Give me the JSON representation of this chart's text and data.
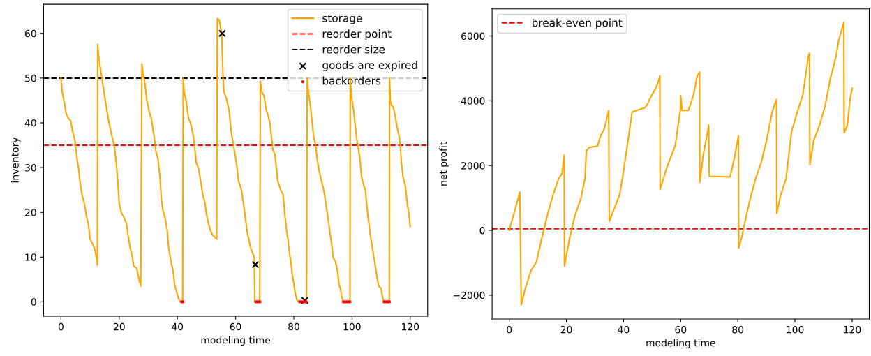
{
  "chart_data": [
    {
      "type": "line",
      "xlabel": "modeling time",
      "ylabel": "inventory",
      "xlim": [
        -6,
        126
      ],
      "ylim": [
        -3.2,
        66.5
      ],
      "xticks": [
        0,
        20,
        40,
        60,
        80,
        100,
        120
      ],
      "yticks": [
        0,
        10,
        20,
        30,
        40,
        50,
        60
      ],
      "grid": false,
      "legend": "top right",
      "series": [
        {
          "name": "storage",
          "color": "#ffa500",
          "marker": "none",
          "line_style": "solid",
          "x": [
            0,
            0.4,
            1,
            1.8,
            2.5,
            3.3,
            4,
            4.8,
            5.5,
            6,
            6.5,
            7.2,
            8,
            8.8,
            9.5,
            10,
            10.8,
            11.5,
            12.3,
            12.5,
            12.6,
            13,
            13.8,
            14.5,
            15,
            15.7,
            16.5,
            17.5,
            18.3,
            19,
            19.5,
            20,
            20.7,
            21.5,
            22.5,
            23,
            23.8,
            24.5,
            25,
            26,
            26.8,
            27.4,
            27.8,
            28.2,
            28.8,
            29.5,
            30.5,
            31,
            32,
            32.5,
            33.3,
            34,
            34.5,
            35,
            35.7,
            36.5,
            37,
            37.8,
            38.5,
            39,
            39.8,
            40.5,
            41.2,
            41.8,
            42,
            42.3,
            43,
            43.8,
            44.5,
            45.5,
            46,
            46.5,
            47.2,
            48,
            48.7,
            49.5,
            50,
            50.5,
            51.3,
            52,
            53.5,
            53.7,
            54.4,
            55.2,
            55.7,
            56,
            57,
            57.7,
            58.5,
            59,
            59.8,
            60.5,
            61,
            62,
            62.7,
            63.3,
            64,
            64.5,
            65.2,
            65.8,
            66.4,
            66.6,
            68.3,
            68.5,
            69,
            69.8,
            70.5,
            71,
            71.8,
            72.3,
            72.8,
            73.5,
            74,
            74.5,
            75.5,
            76.3,
            77,
            77.5,
            78,
            78.5,
            79,
            79.5,
            80,
            80.5,
            81,
            81.8,
            84.4,
            84.6,
            85,
            85.7,
            86.3,
            86.8,
            87.5,
            88,
            88.8,
            89.5,
            90.3,
            91,
            91.7,
            92.3,
            93,
            93.5,
            94.3,
            95,
            95.5,
            96,
            96.5,
            97,
            99.3,
            99.4,
            99.8,
            100.5,
            101,
            101.5,
            102,
            102.7,
            103.3,
            104,
            104.6,
            105,
            105.5,
            106.3,
            107,
            107.5,
            108,
            108.7,
            109.2,
            110,
            110.5,
            111,
            112.8,
            112.9,
            113.2,
            113.5,
            114.2,
            115,
            115.5,
            116.2,
            116.6,
            117,
            117.5,
            118.3,
            118.8,
            119.2,
            119.6,
            120
          ],
          "values": [
            50,
            47,
            45,
            42,
            41,
            40.5,
            38,
            36,
            32,
            30,
            27,
            24,
            22,
            19,
            17,
            14,
            13,
            12,
            9.5,
            8.2,
            57.5,
            54.5,
            51,
            48,
            46,
            43,
            40,
            37,
            35,
            31,
            27,
            22,
            20,
            19,
            17.5,
            15,
            12,
            10,
            8,
            7.5,
            5,
            3.5,
            53.2,
            51,
            49,
            45,
            42,
            41,
            37,
            34,
            32,
            28,
            23,
            20.5,
            19,
            16,
            12,
            9,
            7,
            4,
            2,
            0.5,
            0,
            0,
            50,
            47,
            45,
            41,
            40,
            37,
            34,
            31,
            30,
            27,
            24,
            22,
            19.5,
            18,
            16,
            15,
            14,
            63.3,
            63,
            60,
            50,
            47,
            45,
            43,
            38,
            36,
            33,
            30,
            27,
            25,
            22,
            19,
            15.5,
            14,
            12,
            11,
            10,
            0,
            0,
            49.3,
            47,
            46,
            43,
            42,
            40,
            37,
            34,
            33,
            30,
            27,
            25,
            24,
            19,
            16,
            14,
            11,
            9,
            6,
            4,
            2,
            0.5,
            0,
            0,
            50,
            47,
            44,
            40,
            37,
            35,
            32,
            29,
            27,
            25,
            22,
            19,
            16,
            13,
            10,
            9,
            7,
            4,
            3,
            1,
            0,
            0,
            50,
            46,
            43,
            40,
            37,
            35,
            32,
            28,
            26,
            25,
            22,
            19,
            15,
            12,
            10,
            8,
            5,
            3.5,
            3,
            1,
            0,
            0,
            50,
            45,
            44,
            43.5,
            41,
            39,
            37,
            35,
            31,
            28,
            26,
            23,
            21,
            19.5,
            16.8
          ]
        },
        {
          "name": "goods are expired",
          "type": "scatter",
          "color": "#000000",
          "marker": "cross",
          "x": [
            55.4,
            66.8,
            83.8
          ],
          "values": [
            60,
            8.3,
            0.3
          ]
        },
        {
          "name": "backorders",
          "type": "scatter",
          "color": "#ff0000",
          "marker": "circle",
          "x": [
            41.4,
            41.7,
            42,
            66.9,
            67.3,
            67.7,
            68.1,
            68.4,
            82,
            82.4,
            82.8,
            83.2,
            83.6,
            84,
            84.3,
            97,
            97.4,
            97.8,
            98.2,
            98.6,
            99,
            99.3,
            111,
            111.4,
            111.8,
            112.2,
            112.6,
            112.9
          ],
          "values": [
            0,
            0,
            0,
            0,
            0,
            0,
            0,
            0,
            0,
            0,
            0,
            0,
            0,
            0,
            0,
            0,
            0,
            0,
            0,
            0,
            0,
            0,
            0,
            0,
            0,
            0,
            0,
            0
          ]
        }
      ],
      "ref_lines": [
        {
          "axis": "y",
          "value": 35,
          "label": "reorder point",
          "color": "#ff0000",
          "line_style": "dashed"
        },
        {
          "axis": "y",
          "value": 50,
          "label": "reorder size",
          "color": "#000000",
          "line_style": "dashed"
        }
      ]
    },
    {
      "type": "line",
      "xlabel": "modeling time",
      "ylabel": "net profit",
      "xlim": [
        -6,
        126
      ],
      "ylim": [
        -2735,
        6835
      ],
      "xticks": [
        0,
        20,
        40,
        60,
        80,
        100,
        120
      ],
      "yticks": [
        -2000,
        0,
        2000,
        4000,
        6000
      ],
      "grid": false,
      "legend": "top left",
      "series": [
        {
          "color": "#ffa500",
          "marker": "none",
          "line_style": "solid",
          "x": [
            0,
            3.7,
            4.2,
            5.6,
            7.6,
            9.5,
            11.5,
            13.4,
            15.3,
            17.3,
            18.5,
            19.2,
            19.3,
            21.2,
            23.1,
            25,
            26.5,
            27,
            28,
            30.9,
            31.8,
            33.3,
            34.8,
            35,
            36.7,
            38.6,
            39.6,
            41.6,
            43,
            44.5,
            47.4,
            48.3,
            49.3,
            51.3,
            52.2,
            52.7,
            52.8,
            53.7,
            55.1,
            58.1,
            59.9,
            60,
            60.5,
            62.7,
            64.4,
            65.8,
            66.6,
            66.7,
            67.8,
            69.7,
            69.8,
            70,
            77.3,
            78.9,
            80.2,
            80.3,
            81.4,
            82.8,
            84.3,
            86.2,
            88.2,
            90.1,
            92,
            93.5,
            93.6,
            95,
            96.9,
            98.8,
            100.8,
            102.7,
            104.7,
            105.1,
            105.2,
            106.6,
            108.5,
            110.5,
            112.4,
            114.4,
            115.3,
            117.1,
            117.2,
            118.3,
            119.2,
            120
          ],
          "values": [
            0,
            1180,
            -2300,
            -1800,
            -1240,
            -980,
            -200,
            490,
            1090,
            1600,
            1760,
            2320,
            -1100,
            -200,
            490,
            960,
            1600,
            2450,
            2560,
            2600,
            2880,
            3140,
            3700,
            270,
            660,
            1090,
            1600,
            2790,
            3650,
            3700,
            3780,
            3880,
            4080,
            4390,
            4600,
            4770,
            1260,
            1520,
            1930,
            2620,
            3740,
            4160,
            3700,
            3700,
            4150,
            4770,
            4890,
            1480,
            2280,
            3180,
            3250,
            1670,
            1650,
            2280,
            2920,
            -550,
            -200,
            390,
            960,
            1600,
            2100,
            2790,
            3650,
            4040,
            530,
            1090,
            1600,
            3050,
            3650,
            4160,
            5380,
            5470,
            2020,
            2790,
            3220,
            3820,
            4690,
            5380,
            5860,
            6420,
            3010,
            3220,
            4000,
            4390
          ]
        }
      ],
      "ref_lines": [
        {
          "axis": "y",
          "value": 50,
          "label": "break-even point",
          "color": "#ff0000",
          "line_style": "dashed"
        }
      ]
    }
  ]
}
